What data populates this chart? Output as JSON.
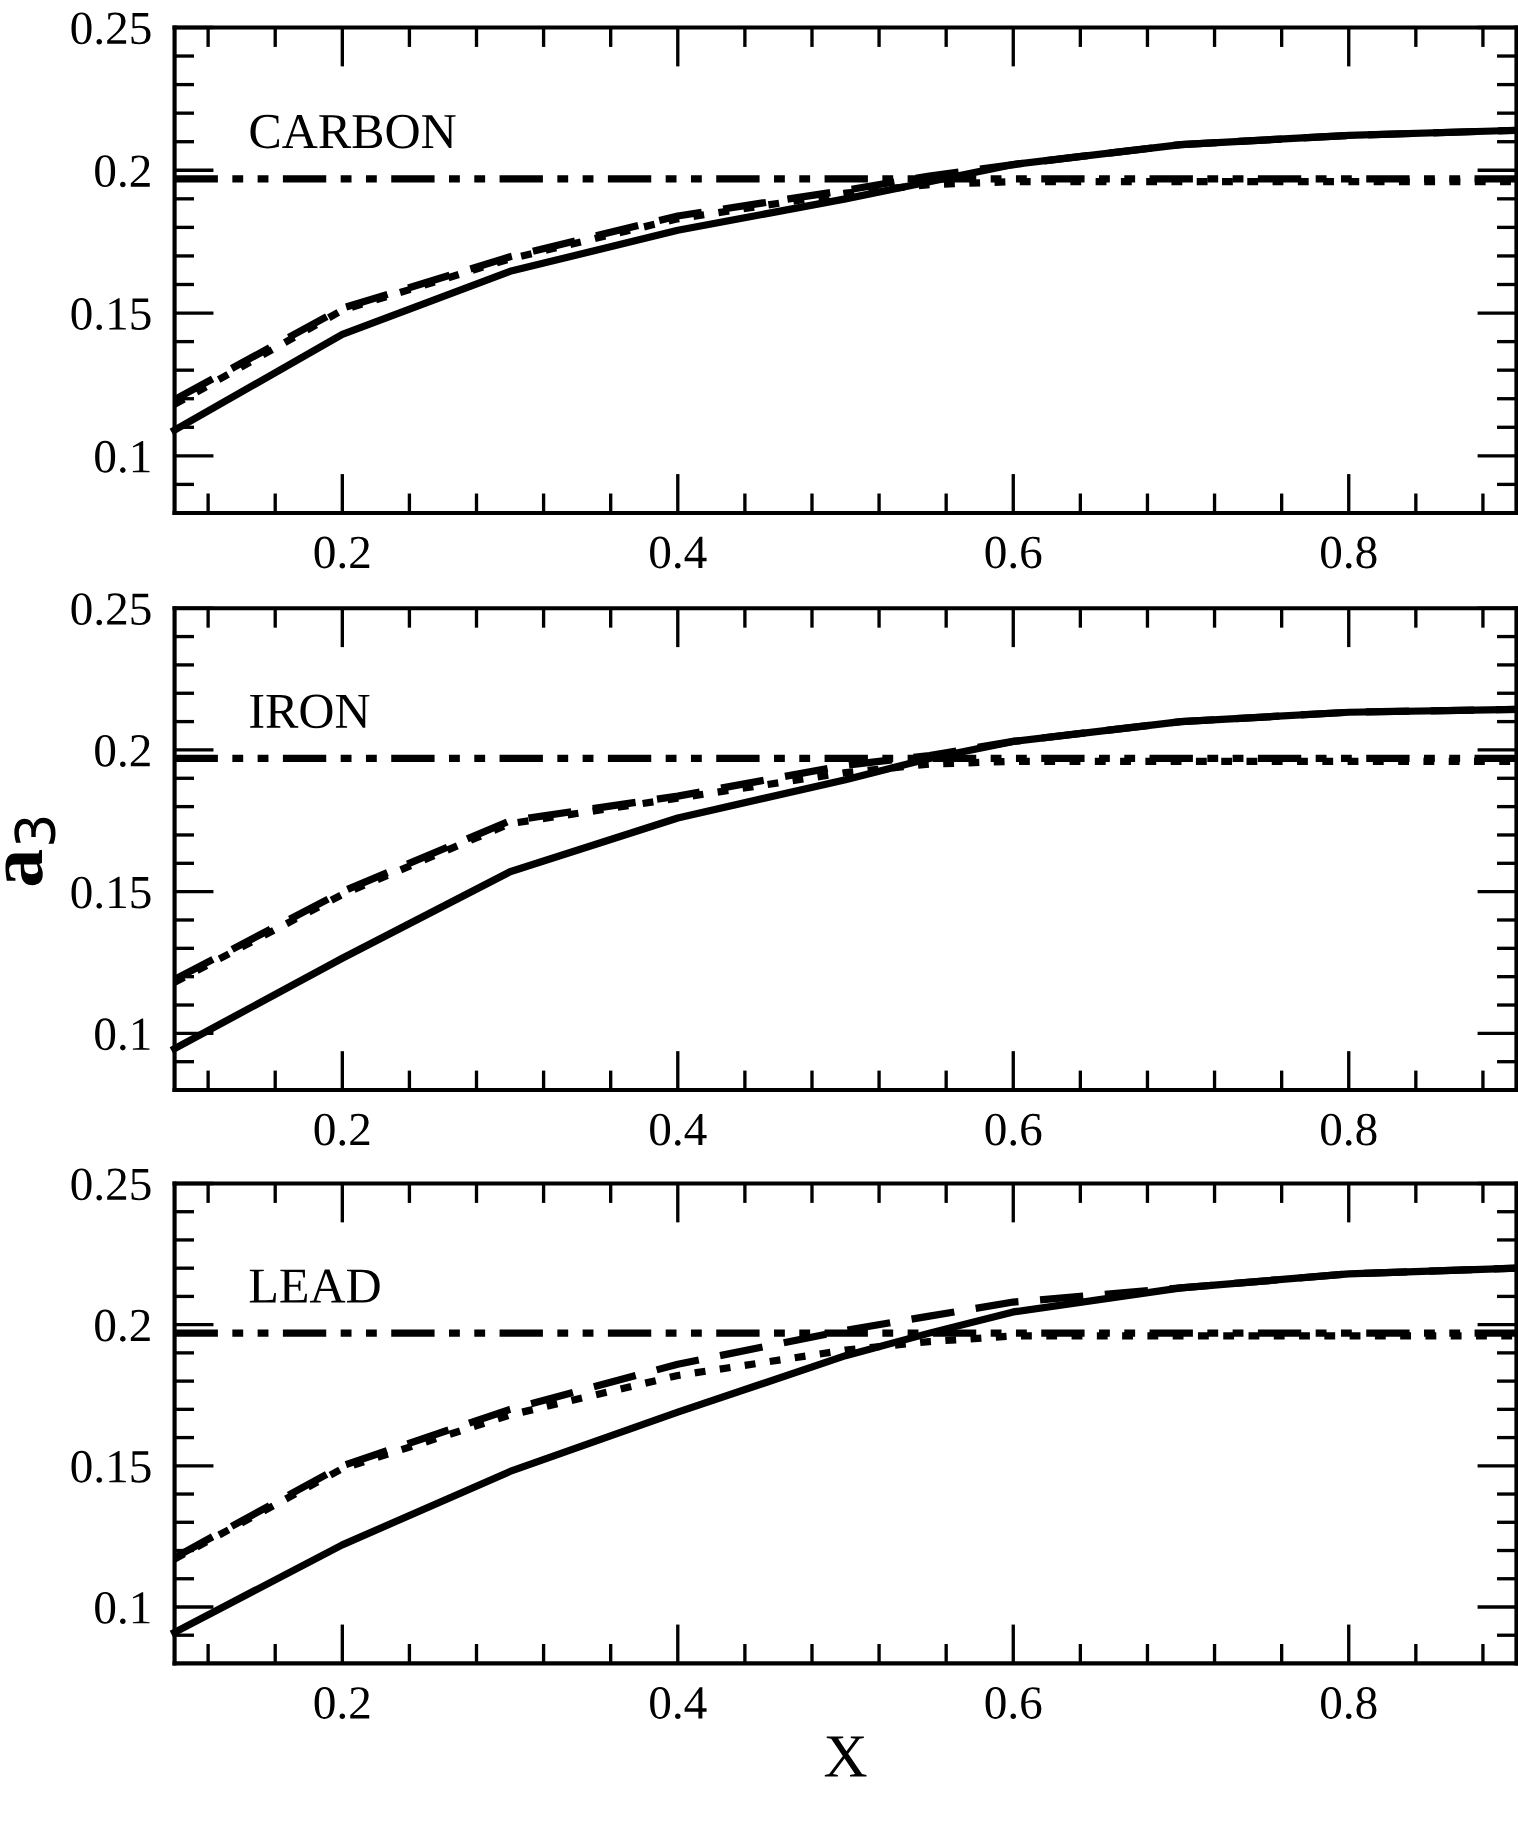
{
  "chart_data": [
    {
      "type": "line",
      "xlim": [
        0.1,
        0.9
      ],
      "ylim": [
        0.08,
        0.25
      ],
      "xticks": [
        {
          "value": 0.12,
          "label": null
        },
        {
          "value": 0.16,
          "label": null
        },
        0.2,
        {
          "value": 0.24,
          "label": null
        },
        {
          "value": 0.28,
          "label": null
        },
        {
          "value": 0.32,
          "label": null
        },
        {
          "value": 0.36,
          "label": null
        },
        0.4,
        {
          "value": 0.44,
          "label": null
        },
        {
          "value": 0.48,
          "label": null
        },
        {
          "value": 0.52,
          "label": null
        },
        {
          "value": 0.56,
          "label": null
        },
        0.6,
        {
          "value": 0.64,
          "label": null
        },
        {
          "value": 0.68,
          "label": null
        },
        {
          "value": 0.72,
          "label": null
        },
        {
          "value": 0.76,
          "label": null
        },
        0.8,
        {
          "value": 0.84,
          "label": null
        },
        {
          "value": 0.88,
          "label": null
        }
      ],
      "yticks": [
        {
          "value": 0.09,
          "label": null
        },
        0.1,
        {
          "value": 0.11,
          "label": null
        },
        {
          "value": 0.12,
          "label": null
        },
        {
          "value": 0.13,
          "label": null
        },
        {
          "value": 0.14,
          "label": null
        },
        0.15,
        {
          "value": 0.16,
          "label": null
        },
        {
          "value": 0.17,
          "label": null
        },
        {
          "value": 0.18,
          "label": null
        },
        {
          "value": 0.19,
          "label": null
        },
        0.2,
        {
          "value": 0.21,
          "label": null
        },
        {
          "value": 0.22,
          "label": null
        },
        {
          "value": 0.23,
          "label": null
        },
        {
          "value": 0.24,
          "label": null
        },
        0.25
      ],
      "x": [
        0.1,
        0.2,
        0.3,
        0.4,
        0.5,
        0.55,
        0.6,
        0.7,
        0.8,
        0.9
      ],
      "series": [
        {
          "color": "#000000",
          "line_style": "solid",
          "values": [
            0.109,
            0.1425,
            0.1646,
            0.179,
            0.19,
            0.196,
            0.202,
            0.209,
            0.2122,
            0.214
          ]
        },
        {
          "color": "#000000",
          "line_style": "dashed",
          "values": [
            0.1197,
            0.1517,
            0.1697,
            0.184,
            0.193,
            0.198,
            0.202,
            0.209,
            0.2122,
            0.214
          ]
        },
        {
          "color": "#000000",
          "line_style": "dotted",
          "values": [
            0.118,
            0.151,
            0.169,
            0.183,
            0.192,
            0.195,
            0.196,
            0.196,
            0.196,
            0.196
          ]
        },
        {
          "color": "#000000",
          "line_style": "dashdot",
          "values": [
            0.197,
            0.197,
            0.197,
            0.197,
            0.197,
            0.197,
            0.197,
            0.197,
            0.197,
            0.197
          ]
        }
      ],
      "annotations": [
        "CARBON"
      ]
    },
    {
      "type": "line",
      "xlim": [
        0.1,
        0.9
      ],
      "ylim": [
        0.08,
        0.25
      ],
      "ylabel": "a$_{3}$",
      "xticks": [
        {
          "value": 0.12,
          "label": null
        },
        {
          "value": 0.16,
          "label": null
        },
        0.2,
        {
          "value": 0.24,
          "label": null
        },
        {
          "value": 0.28,
          "label": null
        },
        {
          "value": 0.32,
          "label": null
        },
        {
          "value": 0.36,
          "label": null
        },
        0.4,
        {
          "value": 0.44,
          "label": null
        },
        {
          "value": 0.48,
          "label": null
        },
        {
          "value": 0.52,
          "label": null
        },
        {
          "value": 0.56,
          "label": null
        },
        0.6,
        {
          "value": 0.64,
          "label": null
        },
        {
          "value": 0.68,
          "label": null
        },
        {
          "value": 0.72,
          "label": null
        },
        {
          "value": 0.76,
          "label": null
        },
        0.8,
        {
          "value": 0.84,
          "label": null
        },
        {
          "value": 0.88,
          "label": null
        }
      ],
      "yticks": [
        {
          "value": 0.09,
          "label": null
        },
        0.1,
        {
          "value": 0.11,
          "label": null
        },
        {
          "value": 0.12,
          "label": null
        },
        {
          "value": 0.13,
          "label": null
        },
        {
          "value": 0.14,
          "label": null
        },
        0.15,
        {
          "value": 0.16,
          "label": null
        },
        {
          "value": 0.17,
          "label": null
        },
        {
          "value": 0.18,
          "label": null
        },
        {
          "value": 0.19,
          "label": null
        },
        0.2,
        {
          "value": 0.21,
          "label": null
        },
        {
          "value": 0.22,
          "label": null
        },
        {
          "value": 0.23,
          "label": null
        },
        {
          "value": 0.24,
          "label": null
        },
        0.25
      ],
      "x": [
        0.1,
        0.2,
        0.3,
        0.4,
        0.5,
        0.55,
        0.6,
        0.7,
        0.8,
        0.9
      ],
      "series": [
        {
          "color": "#000000",
          "line_style": "solid",
          "values": [
            0.0946,
            0.1265,
            0.157,
            0.176,
            0.1895,
            0.197,
            0.203,
            0.21,
            0.2133,
            0.2143
          ]
        },
        {
          "color": "#000000",
          "line_style": "dashed",
          "values": [
            0.119,
            0.15,
            0.175,
            0.1837,
            0.1946,
            0.198,
            0.203,
            0.21,
            0.2133,
            0.2143
          ]
        },
        {
          "color": "#000000",
          "line_style": "dotted",
          "values": [
            0.118,
            0.149,
            0.174,
            0.183,
            0.192,
            0.195,
            0.196,
            0.196,
            0.196,
            0.196
          ]
        },
        {
          "color": "#000000",
          "line_style": "dashdot",
          "values": [
            0.197,
            0.197,
            0.197,
            0.197,
            0.197,
            0.197,
            0.197,
            0.197,
            0.197,
            0.197
          ]
        }
      ],
      "annotations": [
        "IRON"
      ]
    },
    {
      "type": "line",
      "xlim": [
        0.1,
        0.9
      ],
      "ylim": [
        0.08,
        0.25
      ],
      "xlabel": "X",
      "xticks": [
        {
          "value": 0.12,
          "label": null
        },
        {
          "value": 0.16,
          "label": null
        },
        0.2,
        {
          "value": 0.24,
          "label": null
        },
        {
          "value": 0.28,
          "label": null
        },
        {
          "value": 0.32,
          "label": null
        },
        {
          "value": 0.36,
          "label": null
        },
        0.4,
        {
          "value": 0.44,
          "label": null
        },
        {
          "value": 0.48,
          "label": null
        },
        {
          "value": 0.52,
          "label": null
        },
        {
          "value": 0.56,
          "label": null
        },
        0.6,
        {
          "value": 0.64,
          "label": null
        },
        {
          "value": 0.68,
          "label": null
        },
        {
          "value": 0.72,
          "label": null
        },
        {
          "value": 0.76,
          "label": null
        },
        0.8,
        {
          "value": 0.84,
          "label": null
        },
        {
          "value": 0.88,
          "label": null
        }
      ],
      "yticks": [
        {
          "value": 0.09,
          "label": null
        },
        0.1,
        {
          "value": 0.11,
          "label": null
        },
        {
          "value": 0.12,
          "label": null
        },
        {
          "value": 0.13,
          "label": null
        },
        {
          "value": 0.14,
          "label": null
        },
        0.15,
        {
          "value": 0.16,
          "label": null
        },
        {
          "value": 0.17,
          "label": null
        },
        {
          "value": 0.18,
          "label": null
        },
        {
          "value": 0.19,
          "label": null
        },
        0.2,
        {
          "value": 0.21,
          "label": null
        },
        {
          "value": 0.22,
          "label": null
        },
        {
          "value": 0.23,
          "label": null
        },
        {
          "value": 0.24,
          "label": null
        },
        0.25
      ],
      "x": [
        0.1,
        0.2,
        0.3,
        0.4,
        0.5,
        0.55,
        0.6,
        0.7,
        0.8,
        0.9
      ],
      "series": [
        {
          "color": "#000000",
          "line_style": "solid",
          "values": [
            0.091,
            0.122,
            0.148,
            0.169,
            0.189,
            0.197,
            0.2045,
            0.213,
            0.218,
            0.22
          ]
        },
        {
          "color": "#000000",
          "line_style": "dashed",
          "values": [
            0.1175,
            0.15,
            0.17,
            0.186,
            0.198,
            0.203,
            0.208,
            0.213,
            0.218,
            0.22
          ]
        },
        {
          "color": "#000000",
          "line_style": "dotted",
          "values": [
            0.117,
            0.149,
            0.168,
            0.182,
            0.191,
            0.194,
            0.196,
            0.196,
            0.196,
            0.196
          ]
        },
        {
          "color": "#000000",
          "line_style": "dashdot",
          "values": [
            0.197,
            0.197,
            0.197,
            0.197,
            0.197,
            0.197,
            0.197,
            0.197,
            0.197,
            0.197
          ]
        }
      ],
      "annotations": [
        "LEAD"
      ]
    }
  ]
}
